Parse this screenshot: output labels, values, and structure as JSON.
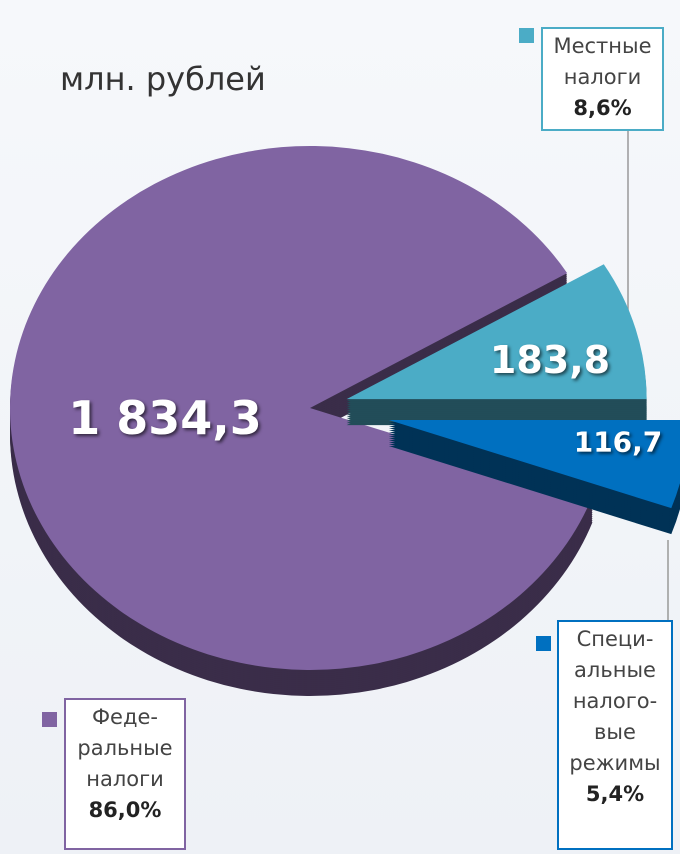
{
  "chart_data": {
    "type": "pie",
    "title": "млн. рублей",
    "categories": [
      "Феде-\nральные\nналоги",
      "Местные\nналоги",
      "Специ-\nальные\nналого-\nвые\nрежимы"
    ],
    "values": [
      1834.3,
      183.8,
      116.7
    ],
    "value_labels": [
      "1 834,3",
      "183,8",
      "116,7"
    ],
    "shares": [
      86.0,
      8.6,
      5.4
    ],
    "share_labels": [
      "86,0%",
      "8,6%",
      "5,4%"
    ],
    "colors": [
      "#8064a2",
      "#4bacc6",
      "#0070c0"
    ]
  }
}
